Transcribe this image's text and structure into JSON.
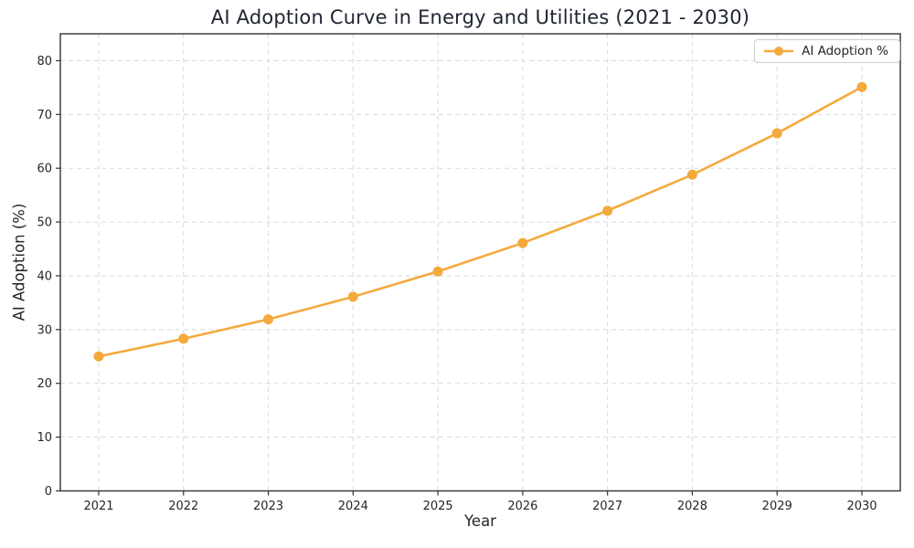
{
  "chart_data": {
    "type": "line",
    "title": "AI Adoption Curve in Energy and Utilities (2021 - 2030)",
    "xlabel": "Year",
    "ylabel": "AI Adoption (%)",
    "x": [
      "2021",
      "2022",
      "2023",
      "2024",
      "2025",
      "2026",
      "2027",
      "2028",
      "2029",
      "2030"
    ],
    "series": [
      {
        "name": "AI Adoption %",
        "values": [
          25.0,
          28.3,
          31.9,
          36.1,
          40.8,
          46.1,
          52.1,
          58.8,
          66.5,
          75.1
        ],
        "color": "#F4A93D",
        "marker": "circle"
      }
    ],
    "ylim": [
      0,
      85
    ],
    "yticks": [
      0,
      10,
      20,
      30,
      40,
      50,
      60,
      70,
      80
    ],
    "grid": true,
    "grid_style": "dashed",
    "legend_position": "upper right",
    "colors": {
      "line": "#F4A93D",
      "grid": "#D9D9D9",
      "axis": "#333333",
      "tick_text": "#262626",
      "title_text": "#1F2430",
      "legend_border": "#CCCCCC"
    }
  }
}
